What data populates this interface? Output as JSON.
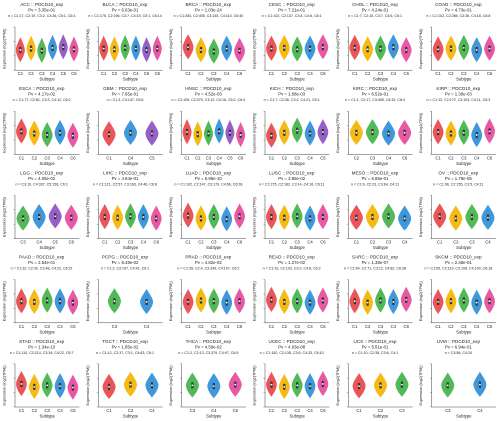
{
  "colors": {
    "C1": "#e8464c",
    "C2": "#f4b400",
    "C3": "#42b34a",
    "C4": "#2f8fd8",
    "C5": "#8e52c4",
    "C6": "#e64a9c",
    "axis": "#444444",
    "text": "#222222",
    "box": "#333333",
    "median": "#ffffff"
  },
  "y_axis_label": "Expression (log2(TPM))",
  "x_axis_label": "Subtype",
  "chart_data": [
    {
      "type": "violin",
      "title": "ACC :: PDCD10_exp",
      "pvalue": "Pv = 3.35e-01",
      "n_line": "n = C1:17, C2:19, C3:2, C4:26, C5:1, C6:1",
      "xlabel": "Subtype",
      "ylabel": "Expression (log2(TPM))",
      "categories": [
        "C1",
        "C2",
        "C3",
        "C4",
        "C5",
        "C6"
      ],
      "median": [
        4.8,
        5.0,
        4.7,
        5.1,
        5.2,
        4.9
      ]
    },
    {
      "type": "violin",
      "title": "BLCA :: PDCD10_exp",
      "pvalue": "Pv = 6.63e-01",
      "n_line": "n = C1:175, C2:196, C3:7, C4:15, C5:1, C6:14",
      "xlabel": "Subtype",
      "ylabel": "Expression (log2(TPM))",
      "categories": [
        "C1",
        "C2",
        "C3",
        "C4",
        "C5",
        "C6"
      ],
      "median": [
        5.0,
        4.9,
        5.1,
        5.0,
        4.8,
        5.0
      ]
    },
    {
      "type": "violin",
      "title": "BRCA :: PDCD10_exp",
      "pvalue": "Pv = 1.03e-24",
      "n_line": "n = C1:284, C2:405, C3:145, C4:110, C6:40",
      "xlabel": "Subtype",
      "ylabel": "Expression (log2(TPM))",
      "categories": [
        "C1",
        "C2",
        "C3",
        "C4",
        "C6"
      ],
      "median": [
        5.2,
        4.8,
        4.6,
        5.0,
        4.7
      ]
    },
    {
      "type": "violin",
      "title": "CESC :: PDCD10_exp",
      "pvalue": "Pv = 7.21e-01",
      "n_line": "n = C1:102, C2:137, C3:4, C4:6, C6:1",
      "xlabel": "Subtype",
      "ylabel": "Expression (log2(TPM))",
      "categories": [
        "C1",
        "C2",
        "C3",
        "C4",
        "C6"
      ],
      "median": [
        5.0,
        5.1,
        4.9,
        5.0,
        5.2
      ]
    },
    {
      "type": "violin",
      "title": "CHOL :: PDCD10_exp",
      "pvalue": "Pv = 4.24e-01",
      "n_line": "n = C1:7, C2:15, C3:7, C4:6, C6:1",
      "xlabel": "Subtype",
      "ylabel": "Expression (log2(TPM))",
      "categories": [
        "C1",
        "C2",
        "C3",
        "C4",
        "C6"
      ],
      "median": [
        5.1,
        4.9,
        5.0,
        5.2,
        4.8
      ]
    },
    {
      "type": "violin",
      "title": "COAD :: PDCD10_exp",
      "pvalue": "Pv = 4.73e-01",
      "n_line": "n = C1:102, C2:286, C3:36, C4:18, C6:8",
      "xlabel": "Subtype",
      "ylabel": "Expression (log2(TPM))",
      "categories": [
        "C1",
        "C2",
        "C3",
        "C4",
        "C6"
      ],
      "median": [
        4.9,
        5.0,
        5.1,
        4.8,
        5.0
      ]
    },
    {
      "type": "violin",
      "title": "ESCA :: PDCD10_exp",
      "pvalue": "Pv = 4.17e-02",
      "n_line": "n = C1:77, C2:81, C3:3, C4:12, C6:2",
      "xlabel": "Subtype",
      "ylabel": "Expression (log2(TPM))",
      "categories": [
        "C1",
        "C2",
        "C3",
        "C4",
        "C6"
      ],
      "median": [
        5.2,
        4.9,
        4.7,
        5.0,
        4.6
      ]
    },
    {
      "type": "violin",
      "title": "GBM :: PDCD10_exp",
      "pvalue": "Pv = 7.65e-01",
      "n_line": "n = C1:3, C4:147, C5:6",
      "xlabel": "Subtype",
      "ylabel": "Expression (log2(TPM))",
      "categories": [
        "C1",
        "C4",
        "C5"
      ],
      "median": [
        4.8,
        5.0,
        4.9
      ]
    },
    {
      "type": "violin",
      "title": "HNSC :: PDCD10_exp",
      "pvalue": "Pv = 4.52e-03",
      "n_line": "n = C1:109, C2:379, C3:12, C4:16, C5:2, C6:4",
      "xlabel": "Subtype",
      "ylabel": "Expression (log2(TPM))",
      "categories": [
        "C1",
        "C2",
        "C3",
        "C4",
        "C5",
        "C6"
      ],
      "median": [
        5.1,
        4.8,
        4.9,
        5.2,
        5.0,
        4.7
      ]
    },
    {
      "type": "violin",
      "title": "KICH :: PDCD10_exp",
      "pvalue": "Pv = 1.08e-03",
      "n_line": "n = C1:7, C2:36, C3:2, C4:21, C5:1",
      "xlabel": "Subtype",
      "ylabel": "Expression (log2(TPM))",
      "categories": [
        "C1",
        "C2",
        "C3",
        "C4",
        "C5"
      ],
      "median": [
        4.6,
        5.0,
        5.3,
        4.9,
        5.1
      ]
    },
    {
      "type": "violin",
      "title": "KIRC :: PDCD10_exp",
      "pvalue": "Pv = 6.52e-01",
      "n_line": "n = C1:1, C2:17, C3:455, C4:32, C6:4",
      "xlabel": "Subtype",
      "ylabel": "Expression (log2(TPM))",
      "categories": [
        "C2",
        "C3",
        "C4",
        "C6"
      ],
      "median": [
        5.0,
        5.1,
        4.9,
        5.0
      ]
    },
    {
      "type": "violin",
      "title": "KIRP :: PDCD10_exp",
      "pvalue": "Pv = 1.30e-03",
      "n_line": "n = C1:13, C2:172, C3:103, C4:11, C6:3",
      "xlabel": "Subtype",
      "ylabel": "Expression (log2(TPM))",
      "categories": [
        "C1",
        "C2",
        "C3",
        "C4",
        "C6"
      ],
      "median": [
        5.1,
        4.9,
        5.0,
        4.7,
        5.2
      ]
    },
    {
      "type": "violin",
      "title": "LGG :: PDCD10_exp",
      "pvalue": "Pv = 4.05e-02",
      "n_line": "n = C3:10, C4:337, C5:156, C6:1",
      "xlabel": "Subtype",
      "ylabel": "Expression (log2(TPM))",
      "categories": [
        "C3",
        "C4",
        "C5",
        "C6"
      ],
      "median": [
        4.8,
        5.0,
        5.1,
        4.9
      ]
    },
    {
      "type": "violin",
      "title": "LIHC :: PDCD10_exp",
      "pvalue": "Pv = 4.94e-01",
      "n_line": "n = C1:121, C2:57, C3:163, C4:46, C6:8",
      "xlabel": "Subtype",
      "ylabel": "Expression (log2(TPM))",
      "categories": [
        "C1",
        "C2",
        "C3",
        "C4",
        "C6"
      ],
      "median": [
        5.0,
        4.9,
        5.1,
        5.0,
        4.8
      ]
    },
    {
      "type": "violin",
      "title": "LUAD :: PDCD10_exp",
      "pvalue": "Pv = 6.96e-10",
      "n_line": "n = C1:102, C2:147, C3:179, C4:66, C6:28",
      "xlabel": "Subtype",
      "ylabel": "Expression (log2(TPM))",
      "categories": [
        "C1",
        "C2",
        "C3",
        "C4",
        "C6"
      ],
      "median": [
        5.2,
        4.8,
        5.0,
        4.7,
        5.1
      ]
    },
    {
      "type": "violin",
      "title": "LUSC :: PDCD10_exp",
      "pvalue": "Pv = 3.85e-02",
      "n_line": "n = C1:275, C2:182, C3:14, C4:16, C6:11",
      "xlabel": "Subtype",
      "ylabel": "Expression (log2(TPM))",
      "categories": [
        "C1",
        "C2",
        "C3",
        "C4",
        "C6"
      ],
      "median": [
        5.0,
        4.9,
        5.1,
        4.8,
        5.0
      ]
    },
    {
      "type": "violin",
      "title": "MESO :: PDCD10_exp",
      "pvalue": "Pv = 6.85e-01",
      "n_line": "n = C1:9, C2:23, C3:64, C4:11",
      "xlabel": "Subtype",
      "ylabel": "Expression (log2(TPM))",
      "categories": [
        "C1",
        "C2",
        "C3",
        "C4"
      ],
      "median": [
        4.9,
        5.0,
        5.1,
        4.8
      ]
    },
    {
      "type": "violin",
      "title": "OV :: PDCD10_exp",
      "pvalue": "Pv = 1.78e-05",
      "n_line": "n = C1:96, C2:155, C3:5, C4:11",
      "xlabel": "Subtype",
      "ylabel": "Expression (log2(TPM))",
      "categories": [
        "C1",
        "C2",
        "C3",
        "C4"
      ],
      "median": [
        5.1,
        4.8,
        5.0,
        4.9
      ]
    },
    {
      "type": "violin",
      "title": "PAAD :: PDCD10_exp",
      "pvalue": "Pv = 2.54e-01",
      "n_line": "n = C1:32, C2:30, C3:48, C4:22, C6:21",
      "xlabel": "Subtype",
      "ylabel": "Expression (log2(TPM))",
      "categories": [
        "C1",
        "C2",
        "C3",
        "C4",
        "C6"
      ],
      "median": [
        5.0,
        4.9,
        5.1,
        5.0,
        4.8
      ]
    },
    {
      "type": "violin",
      "title": "PCPG :: PDCD10_exp",
      "pvalue": "Pv = 8.48e-02",
      "n_line": "n = C1:2, C3:107, C4:41, C6:1",
      "xlabel": "Subtype",
      "ylabel": "Expression (log2(TPM))",
      "categories": [
        "C3",
        "C4"
      ],
      "median": [
        5.0,
        4.9
      ]
    },
    {
      "type": "violin",
      "title": "PRAD :: PDCD10_exp",
      "pvalue": "Pv = 4.82e-02",
      "n_line": "n = C1:35, C2:4, C3:349, C4:107, C6:2",
      "xlabel": "Subtype",
      "ylabel": "Expression (log2(TPM))",
      "categories": [
        "C1",
        "C2",
        "C3",
        "C4",
        "C6"
      ],
      "median": [
        4.9,
        5.1,
        5.0,
        4.8,
        5.0
      ]
    },
    {
      "type": "violin",
      "title": "READ :: PDCD10_exp",
      "pvalue": "Pv = 1.27e-02",
      "n_line": "n = C1:32, C2:103, C3:2, C4:8, C6:2",
      "xlabel": "Subtype",
      "ylabel": "Expression (log2(TPM))",
      "categories": [
        "C1",
        "C2",
        "C3",
        "C4",
        "C6"
      ],
      "median": [
        5.2,
        4.9,
        5.0,
        4.8,
        5.1
      ]
    },
    {
      "type": "violin",
      "title": "SARC :: PDCD10_exp",
      "pvalue": "Pv = 1.38e-07",
      "n_line": "n = C1:64, C2:71, C3:12, C4:82, C6:28",
      "xlabel": "Subtype",
      "ylabel": "Expression (log2(TPM))",
      "categories": [
        "C1",
        "C2",
        "C3",
        "C4",
        "C6"
      ],
      "median": [
        5.0,
        4.8,
        5.1,
        4.9,
        5.2
      ]
    },
    {
      "type": "violin",
      "title": "SKCM :: PDCD10_exp",
      "pvalue": "Pv = 2.48e-01",
      "n_line": "n = C1:65, C2:119, C3:108, C4:100, C6:18",
      "xlabel": "Subtype",
      "ylabel": "Expression (log2(TPM))",
      "categories": [
        "C1",
        "C2",
        "C3",
        "C4",
        "C6"
      ],
      "median": [
        4.9,
        5.0,
        5.1,
        4.8,
        5.0
      ]
    },
    {
      "type": "violin",
      "title": "STAD :: PDCD10_exp",
      "pvalue": "Pv = 1.34e-10",
      "n_line": "n = C1:110, C2:214, C3:34, C4:22, C6:7",
      "xlabel": "Subtype",
      "ylabel": "Expression (log2(TPM))",
      "categories": [
        "C1",
        "C2",
        "C3",
        "C4",
        "C6"
      ],
      "median": [
        5.2,
        4.8,
        5.0,
        4.9,
        4.7
      ]
    },
    {
      "type": "violin",
      "title": "TGCT :: PDCD10_exp",
      "pvalue": "Pv = 1.85e-02",
      "n_line": "n = C1:12, C2:37, C3:1, C4:63, C6:1",
      "xlabel": "Subtype",
      "ylabel": "Expression (log2(TPM))",
      "categories": [
        "C1",
        "C2",
        "C4"
      ],
      "median": [
        4.8,
        5.1,
        5.0
      ]
    },
    {
      "type": "violin",
      "title": "THCA :: PDCD10_exp",
      "pvalue": "Pv = 4.59e-02",
      "n_line": "n = C1:2, C2:13, C3:379, C4:97, C6:5",
      "xlabel": "Subtype",
      "ylabel": "Expression (log2(TPM))",
      "categories": [
        "C3",
        "C4",
        "C6"
      ],
      "median": [
        5.0,
        4.9,
        5.1
      ]
    },
    {
      "type": "violin",
      "title": "UCEC :: PDCD10_exp",
      "pvalue": "Pv = 4.63e-08",
      "n_line": "n = C1:152, C2:138, C3:6, C4:33, C6:10",
      "xlabel": "Subtype",
      "ylabel": "Expression (log2(TPM))",
      "categories": [
        "C1",
        "C2",
        "C3",
        "C4",
        "C6"
      ],
      "median": [
        5.1,
        4.8,
        5.0,
        4.9,
        5.2
      ]
    },
    {
      "type": "violin",
      "title": "UCS :: PDCD10_exp",
      "pvalue": "Pv = 5.51e-01",
      "n_line": "n = C1:10, C2:38, C3:6, C4:1",
      "xlabel": "Subtype",
      "ylabel": "Expression (log2(TPM))",
      "categories": [
        "C1",
        "C2",
        "C3"
      ],
      "median": [
        4.9,
        5.0,
        5.1
      ]
    },
    {
      "type": "violin",
      "title": "UVM :: PDCD10_exp",
      "pvalue": "Pv = 6.94e-01",
      "n_line": "n = C3:56, C4:24",
      "xlabel": "Subtype",
      "ylabel": "Expression (log2(TPM))",
      "categories": [
        "C3",
        "C4"
      ],
      "median": [
        5.0,
        5.1
      ]
    }
  ]
}
